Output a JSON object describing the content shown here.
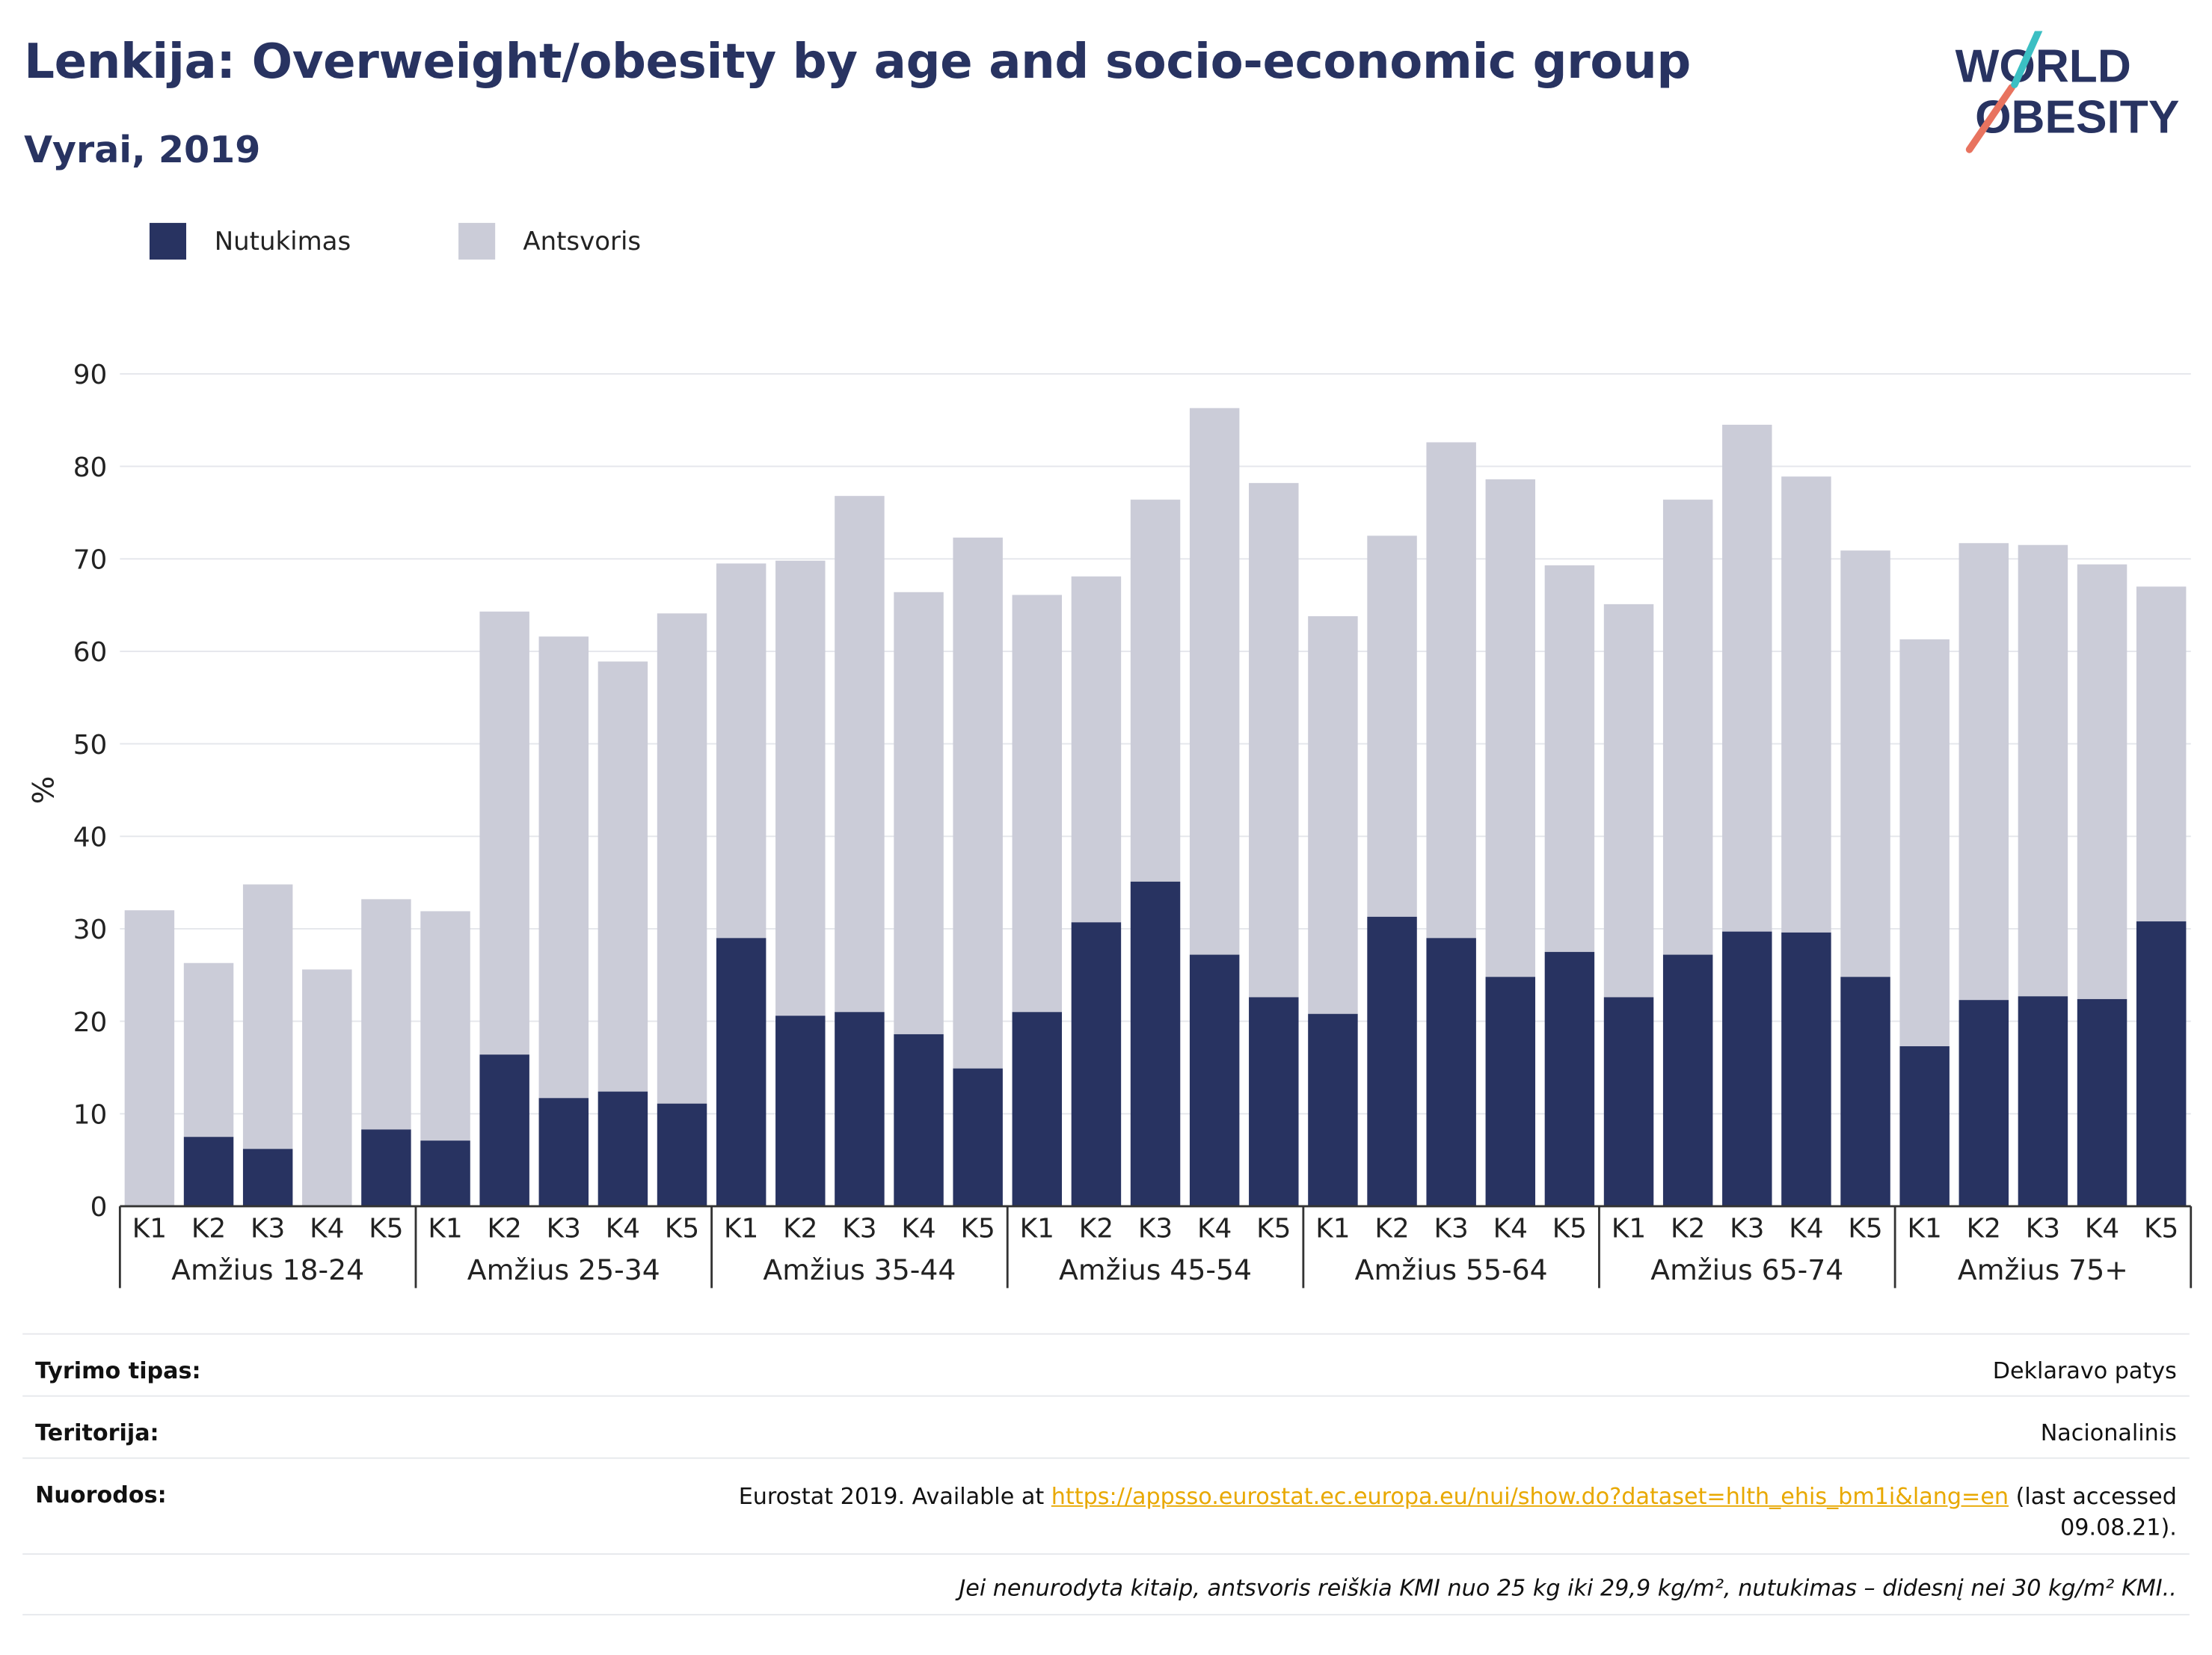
{
  "header": {
    "title": "Lenkija: Overweight/obesity by age and socio-economic group",
    "subtitle": "Vyrai, 2019",
    "logo_line1": "WORLD",
    "logo_line2": "OBESITY"
  },
  "colors": {
    "obesity": "#283361",
    "overweight": "#cbccd8",
    "logo_teal": "#3bbfc3",
    "logo_coral": "#e8735f",
    "link": "#e8a800"
  },
  "chart_data": {
    "type": "bar",
    "stacked": true,
    "ylabel": "%",
    "ylim": [
      0,
      90
    ],
    "yticks": [
      0,
      10,
      20,
      30,
      40,
      50,
      60,
      70,
      80,
      90
    ],
    "grid": true,
    "legend_position": "top-left",
    "subcategories": [
      "K1",
      "K2",
      "K3",
      "K4",
      "K5"
    ],
    "groups": [
      "Amžius 18-24",
      "Amžius 25-34",
      "Amžius 35-44",
      "Amžius 45-54",
      "Amžius 55-64",
      "Amžius 65-74",
      "Amžius 75+"
    ],
    "series": [
      {
        "name": "Nutukimas",
        "values": [
          [
            0,
            7.5,
            6.2,
            0,
            8.3
          ],
          [
            7.1,
            16.4,
            11.7,
            12.4,
            11.1
          ],
          [
            29.0,
            20.6,
            21.0,
            18.6,
            14.9
          ],
          [
            21.0,
            30.7,
            35.1,
            27.2,
            22.6
          ],
          [
            20.8,
            31.3,
            29.0,
            24.8,
            27.5
          ],
          [
            22.6,
            27.2,
            29.7,
            29.6,
            24.8
          ],
          [
            17.3,
            22.3,
            22.7,
            22.4,
            30.8
          ]
        ]
      },
      {
        "name": "Antsvoris",
        "values": [
          [
            32.0,
            18.8,
            28.6,
            25.6,
            24.9
          ],
          [
            24.8,
            47.9,
            49.9,
            46.5,
            53.0
          ],
          [
            40.5,
            49.2,
            55.8,
            47.8,
            57.4
          ],
          [
            45.1,
            37.4,
            41.3,
            59.1,
            55.6
          ],
          [
            43.0,
            41.2,
            53.6,
            53.8,
            41.8
          ],
          [
            42.5,
            49.2,
            54.8,
            49.3,
            46.1
          ],
          [
            44.0,
            49.4,
            48.8,
            47.0,
            36.2
          ]
        ]
      }
    ]
  },
  "info": {
    "rows": [
      {
        "label": "Tyrimo tipas:",
        "value": "Deklaravo patys"
      },
      {
        "label": "Teritorija:",
        "value": "Nacionalinis"
      }
    ],
    "references_label": "Nuorodos:",
    "references_prefix": "Eurostat 2019. Available at ",
    "references_link": "https://appsso.eurostat.ec.europa.eu/nui/show.do?dataset=hlth_ehis_bm1i&lang=en",
    "references_suffix": " (last accessed",
    "references_suffix2": "09.08.21).",
    "footnote": "Jei nenurodyta kitaip, antsvoris reiškia KMI nuo 25 kg iki 29,9 kg/m², nutukimas – didesnį nei 30 kg/m² KMI.."
  }
}
